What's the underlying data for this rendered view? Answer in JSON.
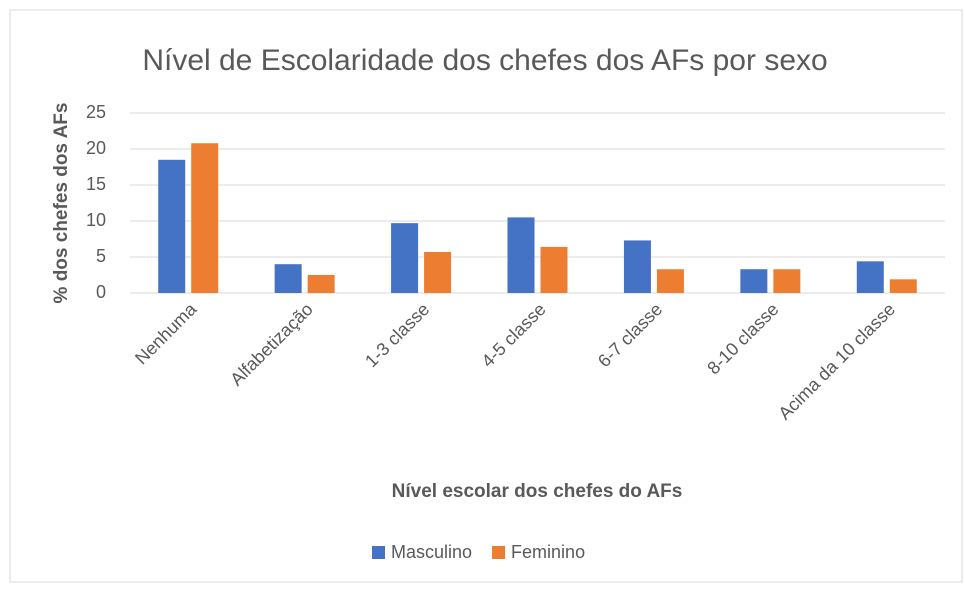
{
  "chart_data": {
    "type": "bar",
    "title": "Nível de Escolaridade dos chefes dos AFs por sexo",
    "x_label": "Nível escolar dos chefes do AFs",
    "y_label": "% dos chefes dos AFs",
    "categories": [
      "Nenhuma",
      "Alfabetização",
      "1-3 classe",
      "4-5 classe",
      "6-7 classe",
      "8-10 classe",
      "Acima da 10 classe"
    ],
    "series": [
      {
        "name": "Masculino",
        "color": "#4472c4",
        "values": [
          18.5,
          4.0,
          9.7,
          10.5,
          7.3,
          3.3,
          4.4
        ]
      },
      {
        "name": "Feminino",
        "color": "#ed7d31",
        "values": [
          20.8,
          2.5,
          5.7,
          6.4,
          3.3,
          3.3,
          1.9
        ]
      }
    ],
    "ylim": [
      0,
      25
    ],
    "yticks": [
      0,
      5,
      10,
      15,
      20,
      25
    ],
    "grid": true,
    "legend": "bottom"
  }
}
